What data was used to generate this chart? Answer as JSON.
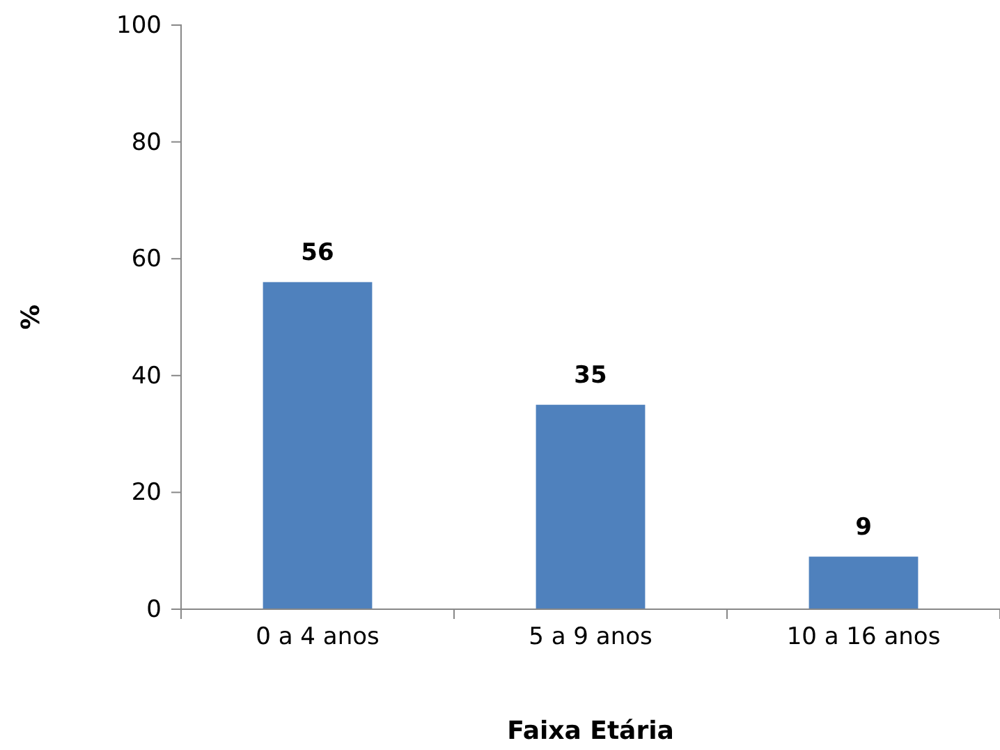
{
  "chart_data": {
    "type": "bar",
    "xlabel": "Faixa Etária",
    "ylabel": "%",
    "categories": [
      "0 a 4 anos",
      "5 a 9 anos",
      "10 a 16 anos"
    ],
    "values": [
      56,
      35,
      9
    ],
    "color": "#4f81bd",
    "ylim": [
      0,
      100
    ],
    "yticks": [
      0,
      20,
      40,
      60,
      80,
      100
    ],
    "grid": false,
    "data_labels": true
  }
}
